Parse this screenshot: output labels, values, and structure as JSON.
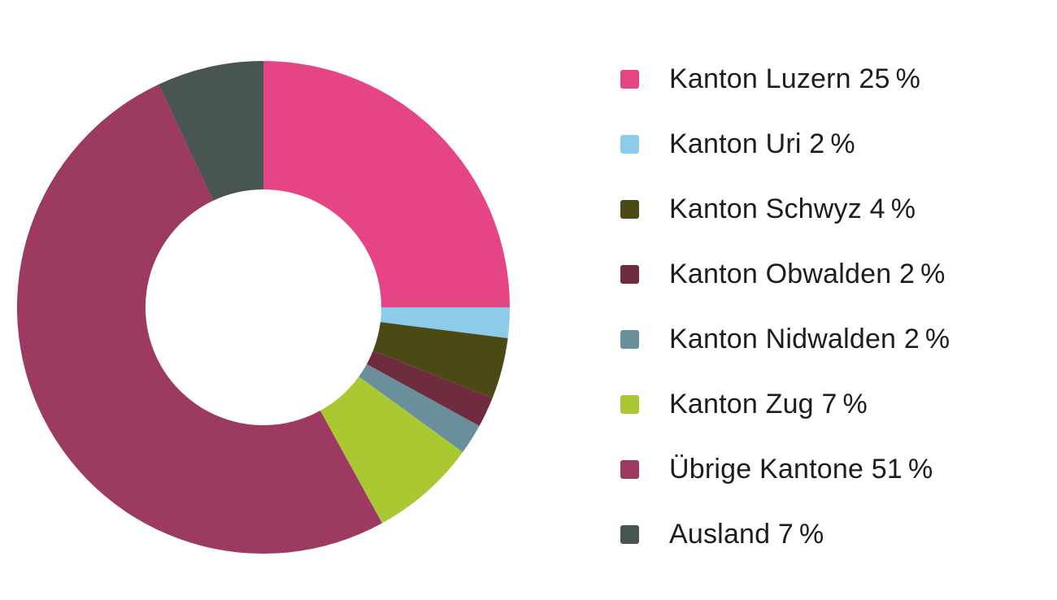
{
  "text_color": "#1d1d1b",
  "background_color": "#ffffff",
  "chart_data": {
    "type": "pie",
    "variant": "donut",
    "start_angle_deg": -90,
    "direction": "clockwise",
    "inner_radius_ratio": 0.48,
    "legend_position": "right",
    "title": "",
    "categories": [
      "Kanton Luzern",
      "Kanton Uri",
      "Kanton Schwyz",
      "Kanton Obwalden",
      "Kanton Nidwalden",
      "Kanton Zug",
      "Übrige Kantone",
      "Ausland"
    ],
    "values": [
      25,
      2,
      4,
      2,
      2,
      7,
      51,
      7
    ],
    "unit": "%",
    "items": [
      {
        "label": "Kanton Luzern",
        "value": 25,
        "color": "#e64585",
        "legend": "Kanton Luzern 25 %"
      },
      {
        "label": "Kanton Uri",
        "value": 2,
        "color": "#8dcbea",
        "legend": "Kanton Uri 2 %"
      },
      {
        "label": "Kanton Schwyz",
        "value": 4,
        "color": "#4b4a15",
        "legend": "Kanton Schwyz 4 %"
      },
      {
        "label": "Kanton Obwalden",
        "value": 2,
        "color": "#6e2c3e",
        "legend": "Kanton Obwalden 2 %"
      },
      {
        "label": "Kanton Nidwalden",
        "value": 2,
        "color": "#6a8f9c",
        "legend": "Kanton Nidwalden 2 %"
      },
      {
        "label": "Kanton Zug",
        "value": 7,
        "color": "#aac832",
        "legend": "Kanton Zug 7 %"
      },
      {
        "label": "Übrige Kantone",
        "value": 51,
        "color": "#9d3a61",
        "legend": "Übrige Kantone 51 %"
      },
      {
        "label": "Ausland",
        "value": 7,
        "color": "#485553",
        "legend": "Ausland 7 %"
      }
    ]
  }
}
